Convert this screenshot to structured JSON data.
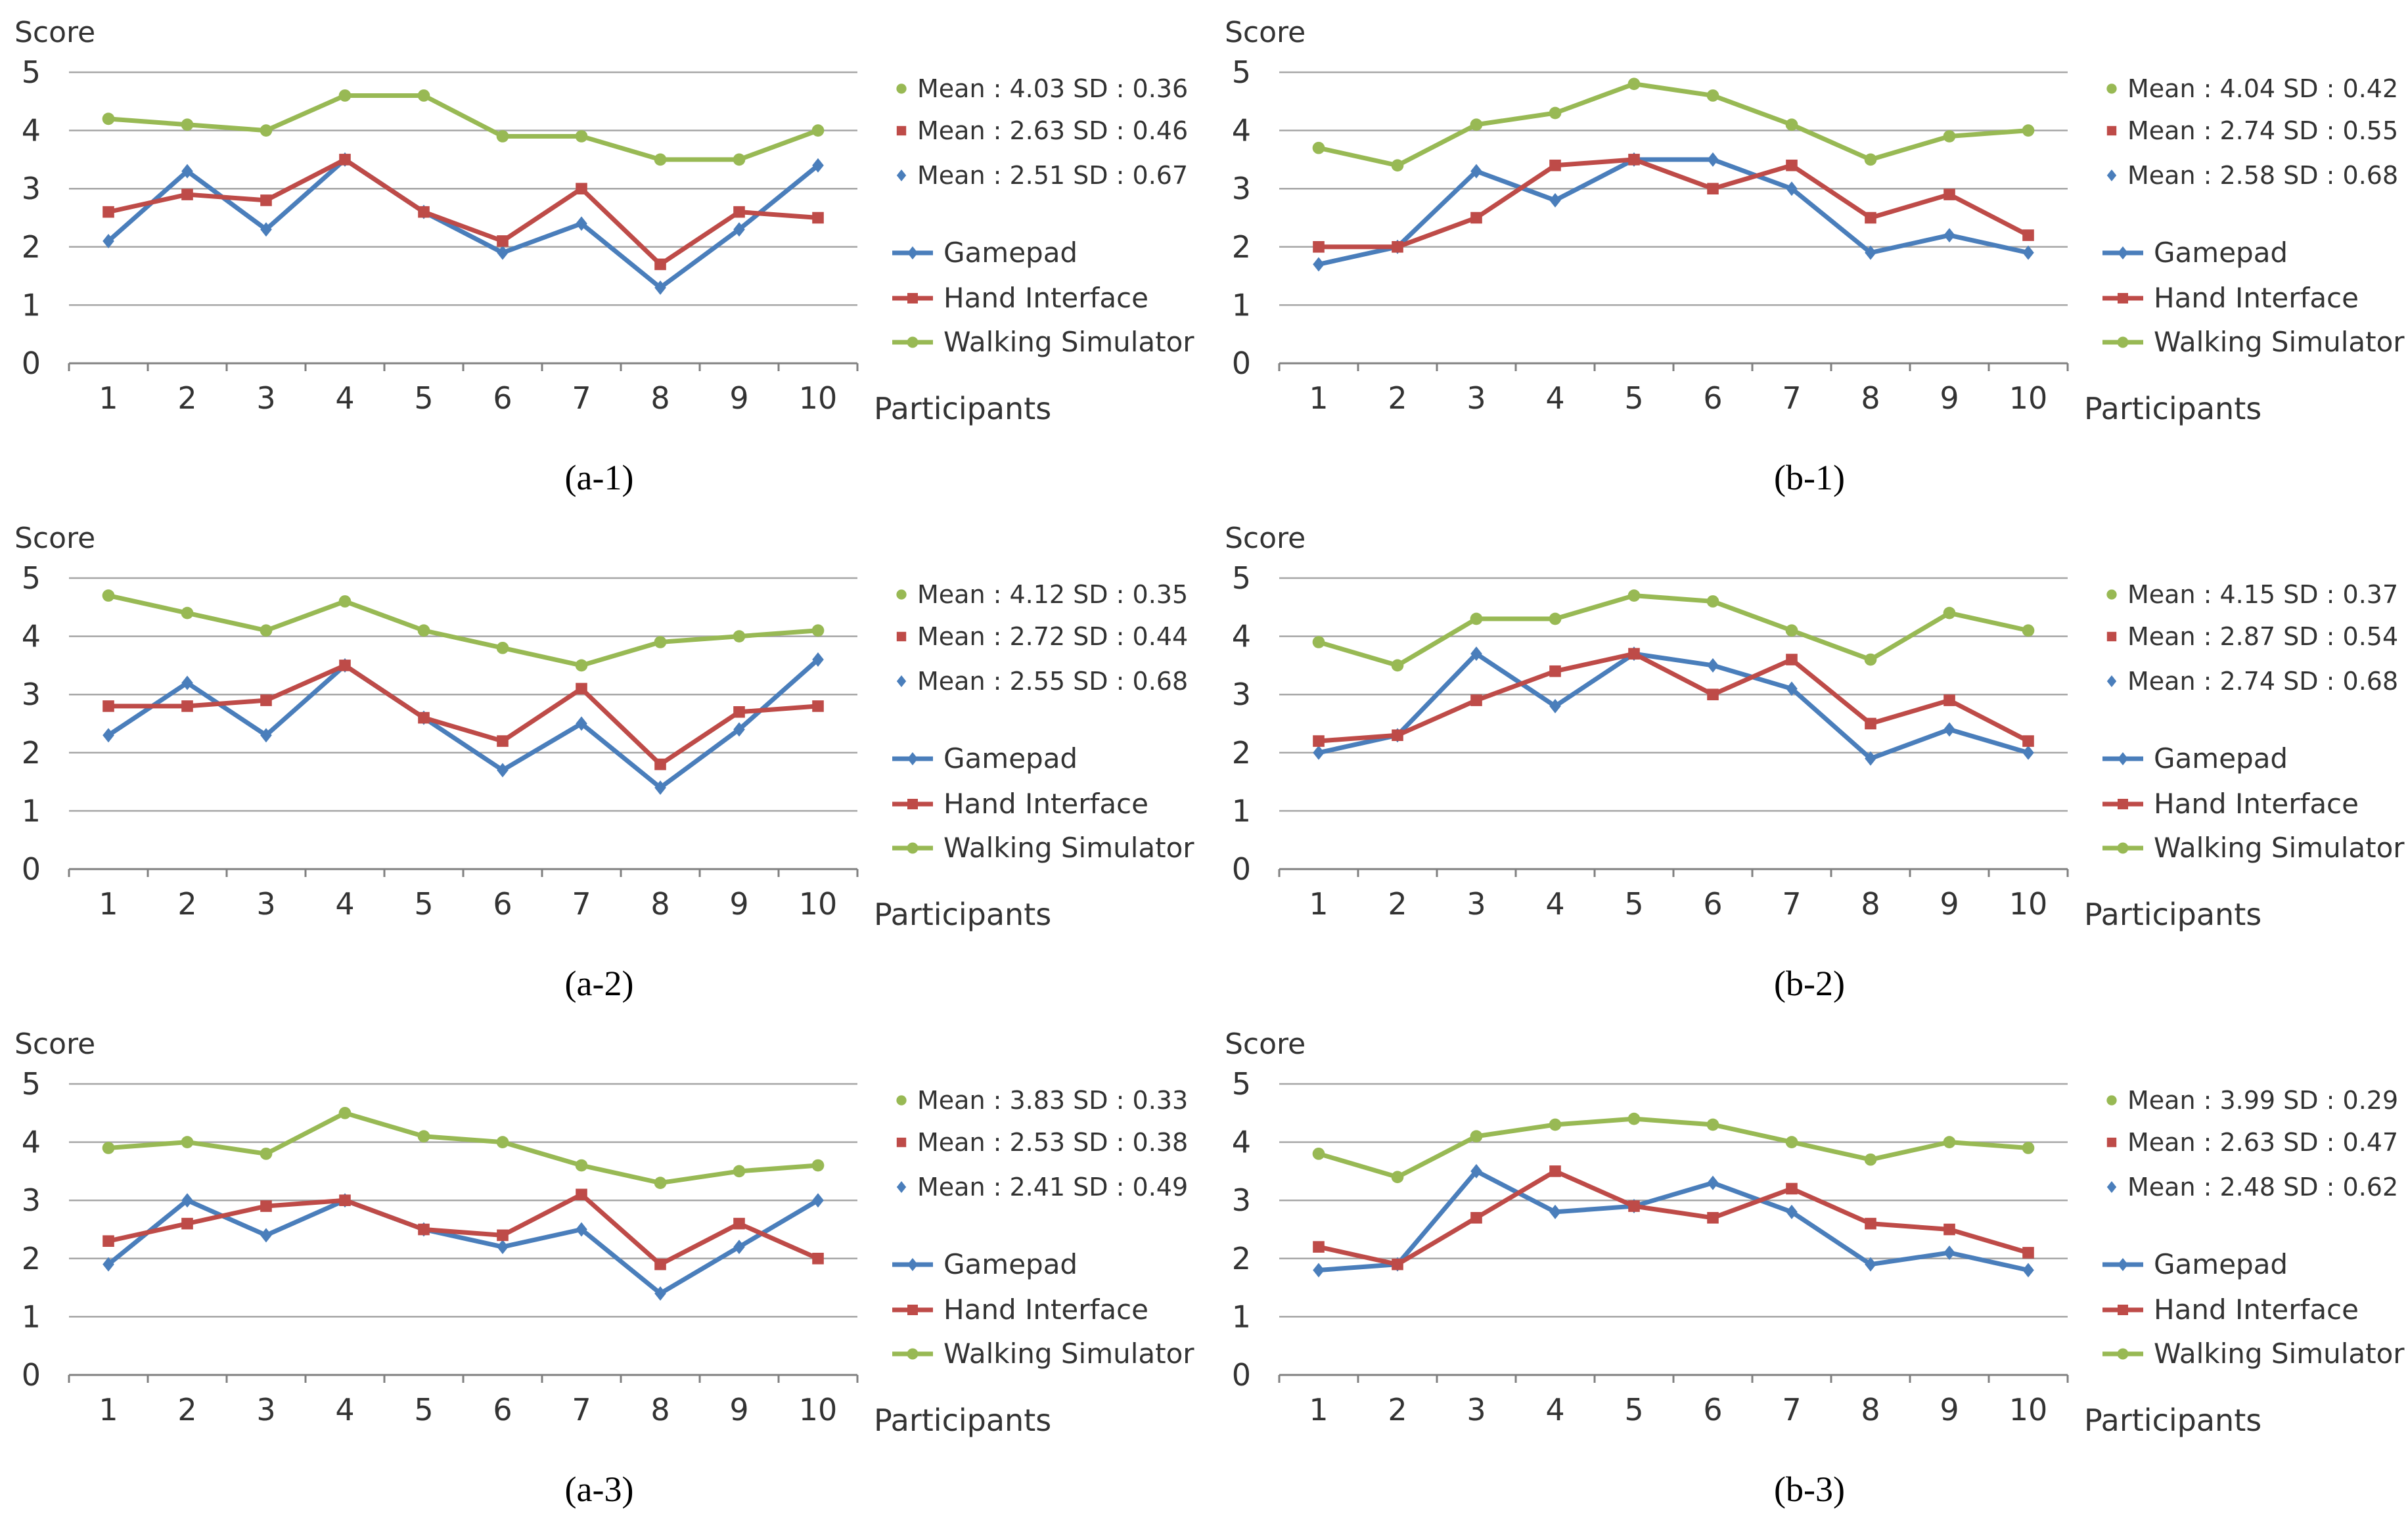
{
  "colors": {
    "gamepad": "#4a7ebb",
    "hand": "#be4b48",
    "walking": "#98b954",
    "grid": "#a6a6a6",
    "axis": "#808080",
    "text": "#333333"
  },
  "series_names": [
    "Gamepad",
    "Hand Interface",
    "Walking Simulator"
  ],
  "chart_data": [
    {
      "type": "line",
      "id": "a1",
      "caption": "(a-1)",
      "ylabel": "Score",
      "xlabel": "Participants",
      "categories": [
        "1",
        "2",
        "3",
        "4",
        "5",
        "6",
        "7",
        "8",
        "9",
        "10"
      ],
      "yticks": [
        "0",
        "1",
        "2",
        "3",
        "4",
        "5"
      ],
      "ylim": [
        0,
        5
      ],
      "series": [
        {
          "name": "Gamepad",
          "values": [
            2.1,
            3.3,
            2.3,
            3.5,
            2.6,
            1.9,
            2.4,
            1.3,
            2.3,
            3.4
          ]
        },
        {
          "name": "Hand Interface",
          "values": [
            2.6,
            2.9,
            2.8,
            3.5,
            2.6,
            2.1,
            3.0,
            1.7,
            2.6,
            2.5
          ]
        },
        {
          "name": "Walking Simulator",
          "values": [
            4.2,
            4.1,
            4.0,
            4.6,
            4.6,
            3.9,
            3.9,
            3.5,
            3.5,
            4.0
          ]
        }
      ],
      "stats": [
        "Mean : 4.03 SD : 0.36",
        "Mean : 2.63 SD : 0.46",
        "Mean : 2.51 SD : 0.67"
      ]
    },
    {
      "type": "line",
      "id": "b1",
      "caption": "(b-1)",
      "ylabel": "Score",
      "xlabel": "Participants",
      "categories": [
        "1",
        "2",
        "3",
        "4",
        "5",
        "6",
        "7",
        "8",
        "9",
        "10"
      ],
      "yticks": [
        "0",
        "1",
        "2",
        "3",
        "4",
        "5"
      ],
      "ylim": [
        0,
        5
      ],
      "series": [
        {
          "name": "Gamepad",
          "values": [
            1.7,
            2.0,
            3.3,
            2.8,
            3.5,
            3.5,
            3.0,
            1.9,
            2.2,
            1.9
          ]
        },
        {
          "name": "Hand Interface",
          "values": [
            2.0,
            2.0,
            2.5,
            3.4,
            3.5,
            3.0,
            3.4,
            2.5,
            2.9,
            2.2
          ]
        },
        {
          "name": "Walking Simulator",
          "values": [
            3.7,
            3.4,
            4.1,
            4.3,
            4.8,
            4.6,
            4.1,
            3.5,
            3.9,
            4.0
          ]
        }
      ],
      "stats": [
        "Mean : 4.04 SD : 0.42",
        "Mean : 2.74 SD : 0.55",
        "Mean : 2.58 SD : 0.68"
      ]
    },
    {
      "type": "line",
      "id": "a2",
      "caption": "(a-2)",
      "ylabel": "Score",
      "xlabel": "Participants",
      "categories": [
        "1",
        "2",
        "3",
        "4",
        "5",
        "6",
        "7",
        "8",
        "9",
        "10"
      ],
      "yticks": [
        "0",
        "1",
        "2",
        "3",
        "4",
        "5"
      ],
      "ylim": [
        0,
        5
      ],
      "series": [
        {
          "name": "Gamepad",
          "values": [
            2.3,
            3.2,
            2.3,
            3.5,
            2.6,
            1.7,
            2.5,
            1.4,
            2.4,
            3.6
          ]
        },
        {
          "name": "Hand Interface",
          "values": [
            2.8,
            2.8,
            2.9,
            3.5,
            2.6,
            2.2,
            3.1,
            1.8,
            2.7,
            2.8
          ]
        },
        {
          "name": "Walking Simulator",
          "values": [
            4.7,
            4.4,
            4.1,
            4.6,
            4.1,
            3.8,
            3.5,
            3.9,
            4.0,
            4.1
          ]
        }
      ],
      "stats": [
        "Mean : 4.12 SD : 0.35",
        "Mean : 2.72 SD : 0.44",
        "Mean : 2.55 SD : 0.68"
      ]
    },
    {
      "type": "line",
      "id": "b2",
      "caption": "(b-2)",
      "ylabel": "Score",
      "xlabel": "Participants",
      "categories": [
        "1",
        "2",
        "3",
        "4",
        "5",
        "6",
        "7",
        "8",
        "9",
        "10"
      ],
      "yticks": [
        "0",
        "1",
        "2",
        "3",
        "4",
        "5"
      ],
      "ylim": [
        0,
        5
      ],
      "series": [
        {
          "name": "Gamepad",
          "values": [
            2.0,
            2.3,
            3.7,
            2.8,
            3.7,
            3.5,
            3.1,
            1.9,
            2.4,
            2.0
          ]
        },
        {
          "name": "Hand Interface",
          "values": [
            2.2,
            2.3,
            2.9,
            3.4,
            3.7,
            3.0,
            3.6,
            2.5,
            2.9,
            2.2
          ]
        },
        {
          "name": "Walking Simulator",
          "values": [
            3.9,
            3.5,
            4.3,
            4.3,
            4.7,
            4.6,
            4.1,
            3.6,
            4.4,
            4.1
          ]
        }
      ],
      "stats": [
        "Mean : 4.15 SD : 0.37",
        "Mean : 2.87 SD : 0.54",
        "Mean : 2.74 SD : 0.68"
      ]
    },
    {
      "type": "line",
      "id": "a3",
      "caption": "(a-3)",
      "ylabel": "Score",
      "xlabel": "Participants",
      "categories": [
        "1",
        "2",
        "3",
        "4",
        "5",
        "6",
        "7",
        "8",
        "9",
        "10"
      ],
      "yticks": [
        "0",
        "1",
        "2",
        "3",
        "4",
        "5"
      ],
      "ylim": [
        0,
        5
      ],
      "series": [
        {
          "name": "Gamepad",
          "values": [
            1.9,
            3.0,
            2.4,
            3.0,
            2.5,
            2.2,
            2.5,
            1.4,
            2.2,
            3.0
          ]
        },
        {
          "name": "Hand Interface",
          "values": [
            2.3,
            2.6,
            2.9,
            3.0,
            2.5,
            2.4,
            3.1,
            1.9,
            2.6,
            2.0
          ]
        },
        {
          "name": "Walking Simulator",
          "values": [
            3.9,
            4.0,
            3.8,
            4.5,
            4.1,
            4.0,
            3.6,
            3.3,
            3.5,
            3.6
          ]
        }
      ],
      "stats": [
        "Mean : 3.83 SD : 0.33",
        "Mean : 2.53 SD : 0.38",
        "Mean : 2.41 SD : 0.49"
      ]
    },
    {
      "type": "line",
      "id": "b3",
      "caption": "(b-3)",
      "ylabel": "Score",
      "xlabel": "Participants",
      "categories": [
        "1",
        "2",
        "3",
        "4",
        "5",
        "6",
        "7",
        "8",
        "9",
        "10"
      ],
      "yticks": [
        "0",
        "1",
        "2",
        "3",
        "4",
        "5"
      ],
      "ylim": [
        0,
        5
      ],
      "series": [
        {
          "name": "Gamepad",
          "values": [
            1.8,
            1.9,
            3.5,
            2.8,
            2.9,
            3.3,
            2.8,
            1.9,
            2.1,
            1.8
          ]
        },
        {
          "name": "Hand Interface",
          "values": [
            2.2,
            1.9,
            2.7,
            3.5,
            2.9,
            2.7,
            3.2,
            2.6,
            2.5,
            2.1
          ]
        },
        {
          "name": "Walking Simulator",
          "values": [
            3.8,
            3.4,
            4.1,
            4.3,
            4.4,
            4.3,
            4.0,
            3.7,
            4.0,
            3.9
          ]
        }
      ],
      "stats": [
        "Mean : 3.99 SD : 0.29",
        "Mean : 2.63 SD : 0.47",
        "Mean : 2.48 SD : 0.62"
      ]
    }
  ]
}
